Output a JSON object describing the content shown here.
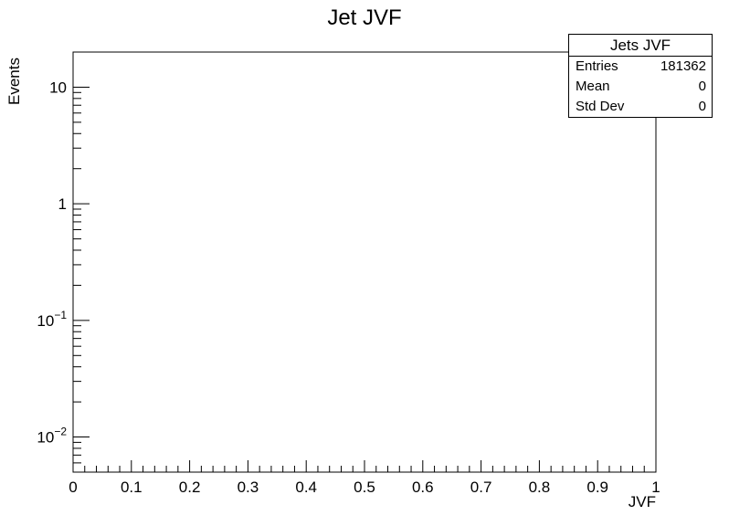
{
  "chart_data": {
    "type": "histogram",
    "title": "Jet JVF",
    "xlabel": "JVF",
    "ylabel": "Events",
    "xlim": [
      0,
      1
    ],
    "ylim": [
      0.005,
      20
    ],
    "yscale": "log",
    "grid": false,
    "x_ticks": [
      "0",
      "0.1",
      "0.2",
      "0.3",
      "0.4",
      "0.5",
      "0.6",
      "0.7",
      "0.8",
      "0.9",
      "1"
    ],
    "y_ticks": [
      {
        "value": 0.01,
        "base": "10",
        "exp": "−2"
      },
      {
        "value": 0.1,
        "base": "10",
        "exp": "−1"
      },
      {
        "value": 1,
        "base": "1",
        "exp": ""
      },
      {
        "value": 10,
        "base": "10",
        "exp": ""
      }
    ],
    "series": [],
    "stats_box": {
      "title": "Jets JVF",
      "placement": "top-right",
      "rows": [
        {
          "label": "Entries",
          "value": "181362"
        },
        {
          "label": "Mean",
          "value": "0"
        },
        {
          "label": "Std Dev",
          "value": "0"
        }
      ]
    }
  }
}
